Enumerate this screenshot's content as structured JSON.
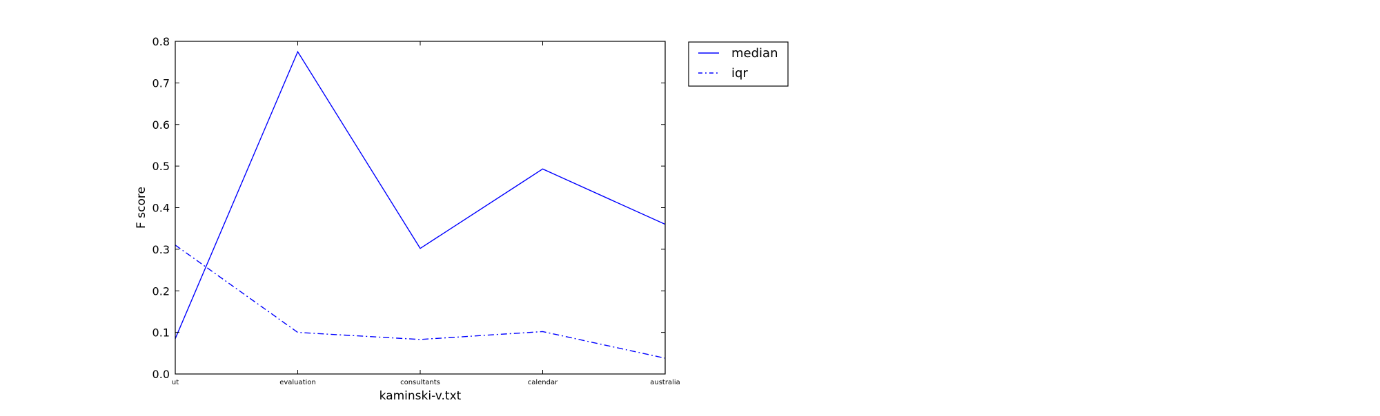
{
  "chart_data": {
    "type": "line",
    "title": "",
    "xlabel": "kaminski-v.txt",
    "ylabel": "F score",
    "categories": [
      "ut",
      "evaluation",
      "consultants",
      "calendar",
      "australia"
    ],
    "ylim": [
      0.0,
      0.8
    ],
    "yticks": [
      "0.0",
      "0.1",
      "0.2",
      "0.3",
      "0.4",
      "0.5",
      "0.6",
      "0.7",
      "0.8"
    ],
    "grid": false,
    "legend_position": "outside-top-right",
    "series": [
      {
        "name": "median",
        "values": [
          0.085,
          0.775,
          0.302,
          0.493,
          0.36
        ],
        "color": "#0000ff",
        "linestyle": "solid"
      },
      {
        "name": "iqr",
        "values": [
          0.31,
          0.1,
          0.083,
          0.102,
          0.038
        ],
        "color": "#0000ff",
        "linestyle": "dashdot"
      }
    ]
  }
}
